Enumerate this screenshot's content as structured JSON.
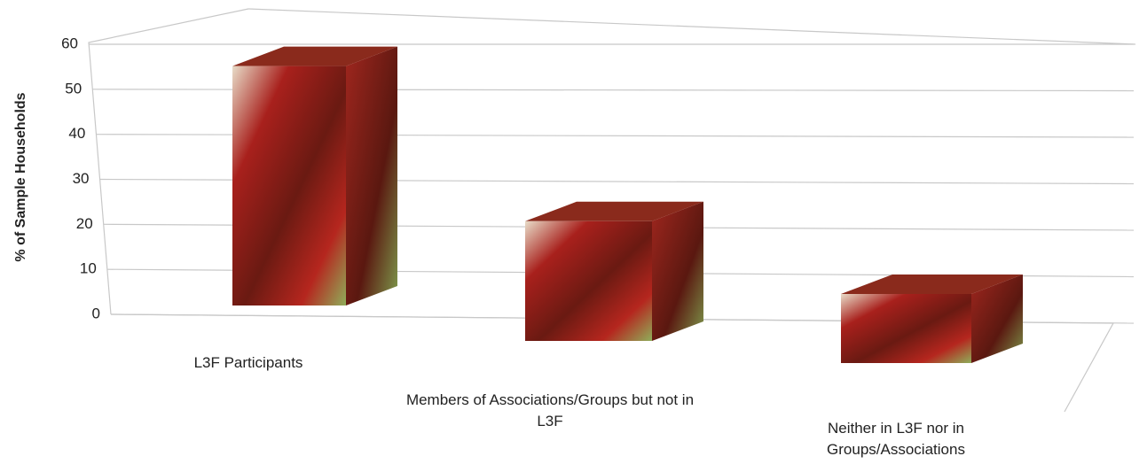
{
  "chart_data": {
    "type": "bar3d",
    "y_label": "% of Sample Households",
    "categories": [
      "L3F Participants",
      "Members of Associations/Groups but not in L3F",
      "Neither in L3F nor in Groups/Associations"
    ],
    "values": [
      52,
      26,
      15
    ],
    "ylim": [
      0,
      60
    ],
    "yticks": [
      0,
      10,
      20,
      30,
      40,
      50,
      60
    ],
    "grid": true
  }
}
